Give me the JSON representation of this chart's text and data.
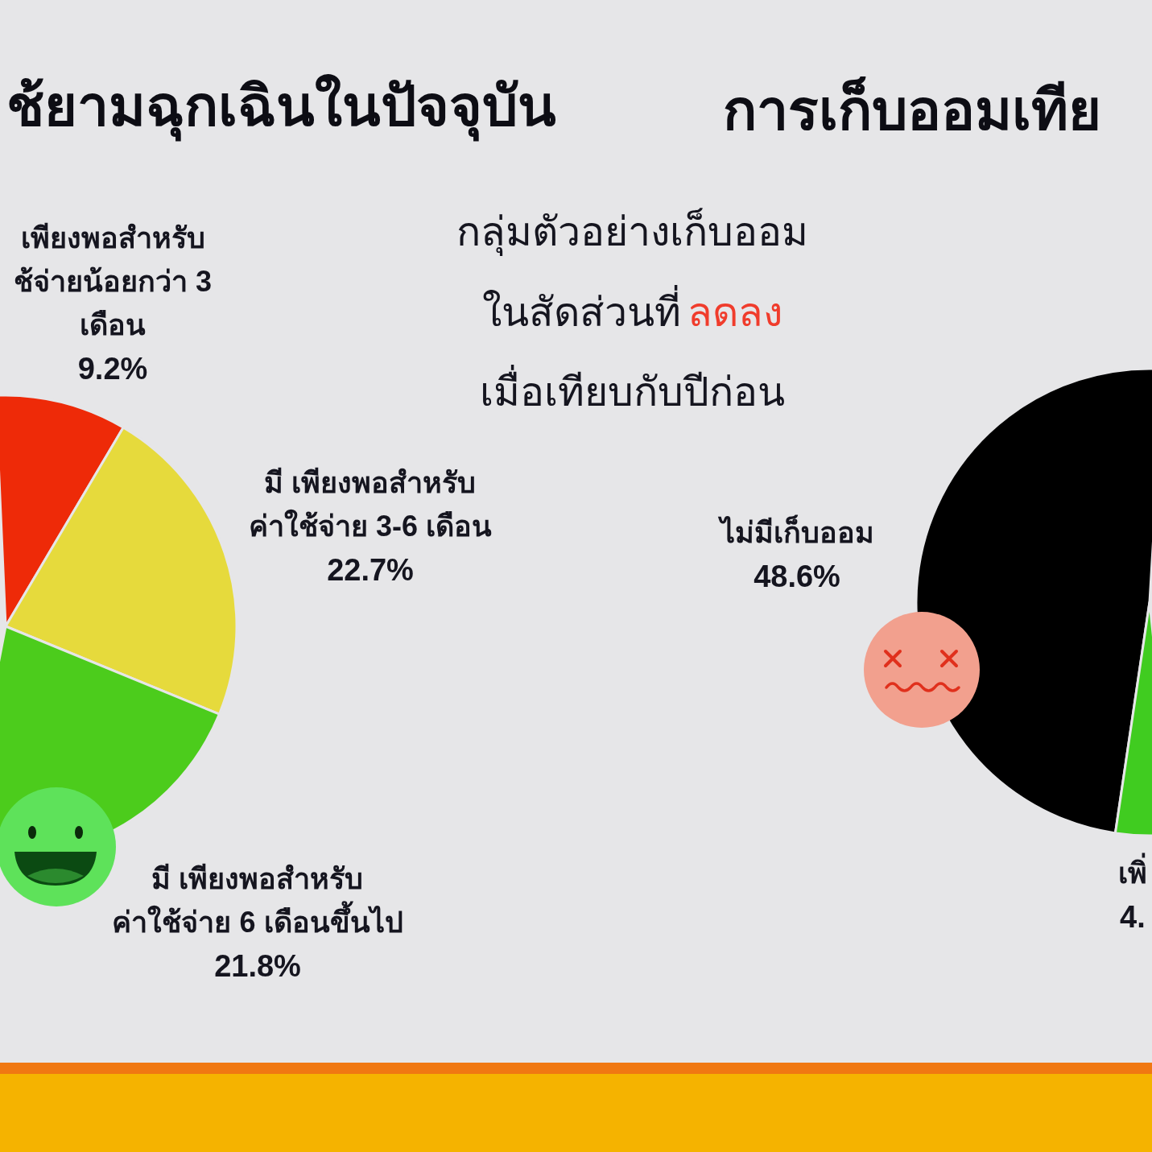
{
  "chart_data": [
    {
      "type": "pie",
      "title": "ช้ยามฉุกเฉินในปัจจุบัน",
      "categories": [
        "เพียงพอสำหรับ\nช้จ่ายน้อยกว่า 3\nเดือน",
        "มี เพียงพอสำหรับ\nค่าใช้จ่าย 3-6 เดือน",
        "มี เพียงพอสำหรับ\nค่าใช้จ่าย 6 เดือนขึ้นไป"
      ],
      "values": [
        9.2,
        22.7,
        21.8
      ],
      "colors": [
        "#ee2a08",
        "#e6da3c",
        "#4ccc1c"
      ],
      "value_labels": [
        "9.2%",
        "22.7%",
        "21.8%"
      ]
    },
    {
      "type": "pie",
      "title": "การเก็บออมเทีย",
      "categories": [
        "ไม่มีเก็บออม",
        "เพิ่"
      ],
      "values": [
        48.6,
        4
      ],
      "colors": [
        "#000000",
        "#40cc20"
      ],
      "value_labels": [
        "48.6%",
        "4."
      ],
      "annotations": [
        "กลุ่มตัวอย่างเก็บออม",
        "ในสัดส่วนที่",
        "ลดลง",
        "เมื่อเทียบกับปีก่อน"
      ]
    }
  ]
}
